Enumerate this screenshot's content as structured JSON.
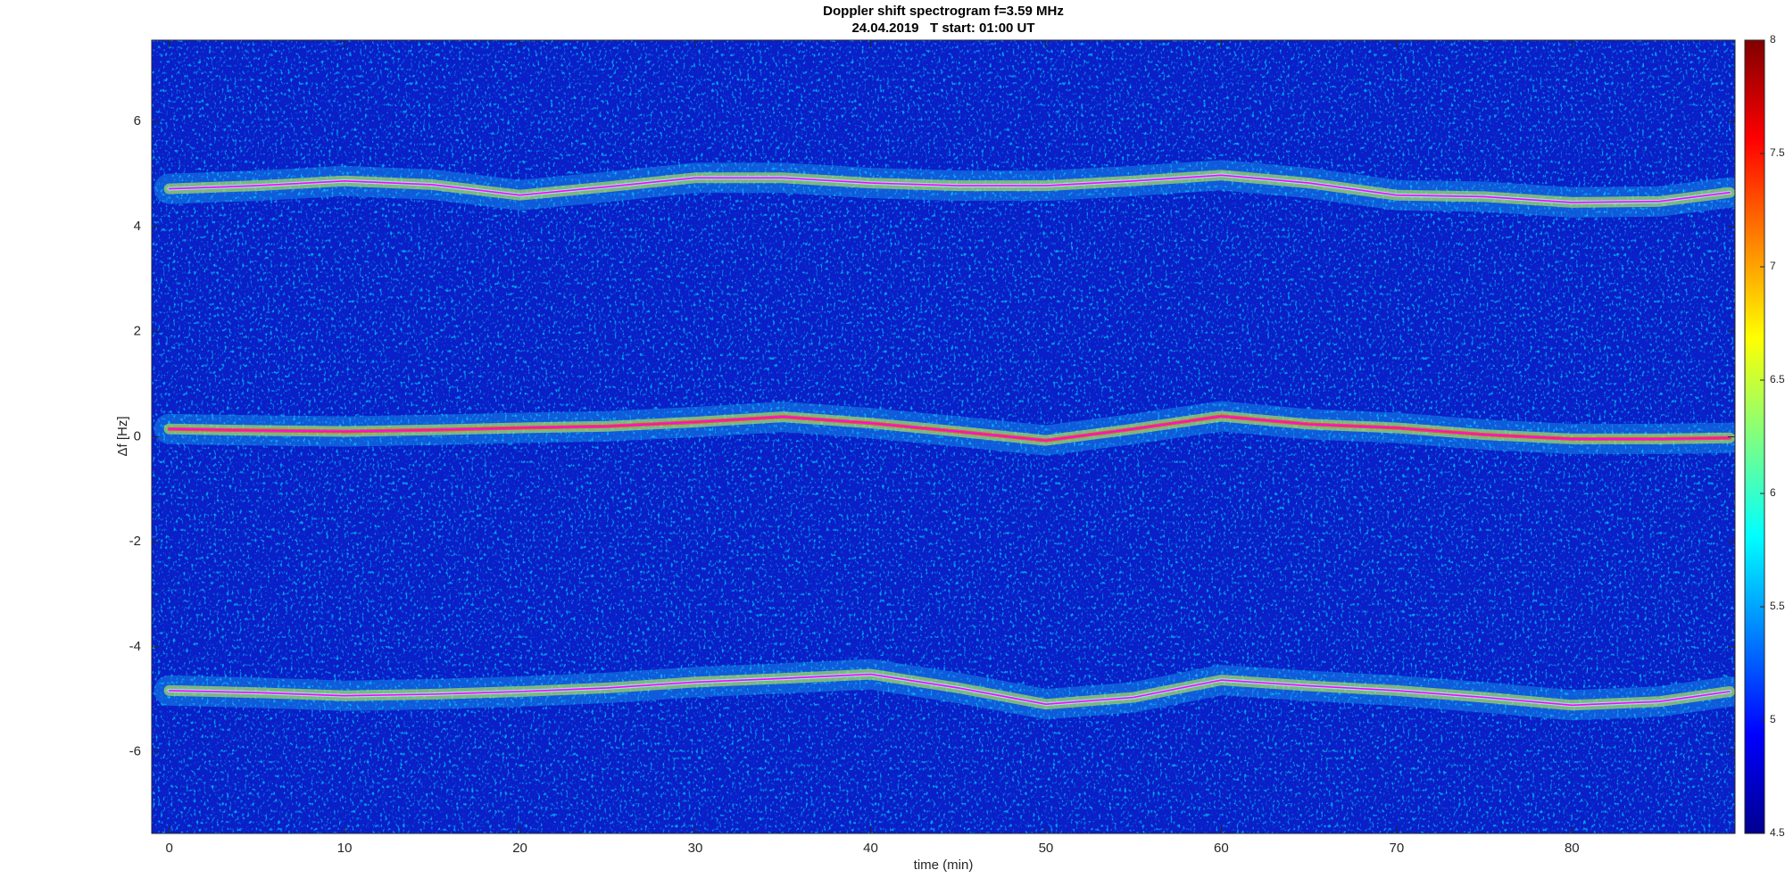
{
  "chart_data": {
    "type": "spectrogram",
    "title": "Doppler shift spectrogram f=3.59 MHz",
    "subtitle": "24.04.2019   T start: 01:00 UT",
    "x_label": "time (min)",
    "y_label": "Δf [Hz]",
    "xlim": [
      -1,
      89.3
    ],
    "ylim": [
      -7.55,
      7.55
    ],
    "xticks": [
      0,
      10,
      20,
      30,
      40,
      50,
      60,
      70,
      80
    ],
    "yticks": [
      -6,
      -4,
      -2,
      0,
      2,
      4,
      6
    ],
    "x": [
      0,
      5,
      10,
      15,
      20,
      25,
      30,
      35,
      40,
      45,
      50,
      55,
      60,
      65,
      70,
      75,
      80,
      85,
      89
    ],
    "series": [
      {
        "color": "#ff00ff",
        "values": [
          4.72,
          4.78,
          4.87,
          4.8,
          4.6,
          4.76,
          4.93,
          4.93,
          4.83,
          4.78,
          4.78,
          4.87,
          4.98,
          4.83,
          4.6,
          4.57,
          4.46,
          4.48,
          4.65
        ]
      },
      {
        "color": "#ff00ff",
        "values": [
          0.15,
          0.12,
          0.1,
          0.13,
          0.17,
          0.2,
          0.28,
          0.38,
          0.26,
          0.1,
          -0.07,
          0.15,
          0.39,
          0.24,
          0.17,
          0.04,
          -0.04,
          -0.04,
          -0.02
        ]
      },
      {
        "color": "#ff00ff",
        "values": [
          -4.83,
          -4.87,
          -4.93,
          -4.9,
          -4.85,
          -4.78,
          -4.67,
          -4.6,
          -4.52,
          -4.78,
          -5.09,
          -4.96,
          -4.63,
          -4.74,
          -4.83,
          -4.96,
          -5.11,
          -5.04,
          -4.85
        ]
      }
    ],
    "colormap": "jet",
    "clim": [
      4.5,
      8
    ],
    "cticks": [
      4.5,
      5,
      5.5,
      6,
      6.5,
      7,
      7.5,
      8
    ]
  }
}
